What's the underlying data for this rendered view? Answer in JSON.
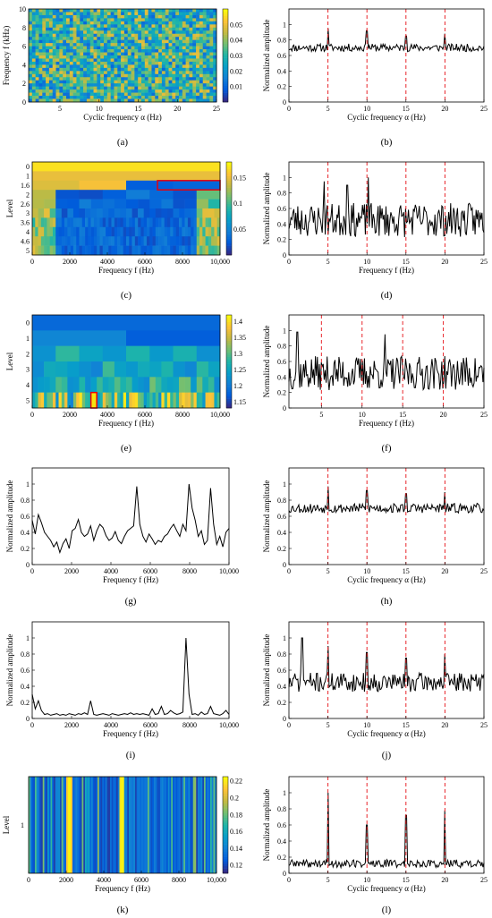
{
  "chart_data": [
    {
      "id": "a",
      "type": "heatmap",
      "panel_label": "(a)",
      "xlabel": "Cyclic frequency α (Hz)",
      "ylabel": "Frequency f (kHz)",
      "xlim": [
        1,
        25
      ],
      "ylim": [
        0,
        10
      ],
      "xticks": [
        5,
        10,
        15,
        20,
        25
      ],
      "yticks": [
        0,
        2,
        4,
        6,
        8,
        10
      ],
      "colorbar": {
        "min": 0,
        "max": 0.06,
        "ticks": [
          "0.01",
          "0.02",
          "0.03",
          "0.04",
          "0.05"
        ]
      },
      "description_values": {
        "rows": 30,
        "cols": 55,
        "mean": 0.03,
        "spread": 0.02
      }
    },
    {
      "id": "b",
      "type": "line",
      "panel_label": "(b)",
      "xlabel": "Cyclic frequency α (Hz)",
      "ylabel": "Normalized amplitude",
      "xlim": [
        0,
        25
      ],
      "ylim": [
        0,
        1.2
      ],
      "xticks": [
        0,
        5,
        10,
        15,
        20,
        25
      ],
      "yticks": [
        0,
        0.2,
        0.4,
        0.6,
        0.8,
        1
      ],
      "markers": [
        5,
        10,
        15,
        20
      ],
      "series": [
        {
          "baseline": 0.7,
          "noise": 0.05,
          "points": 200,
          "seed": 11,
          "peaks": [
            {
              "x": 5,
              "y": 0.95
            },
            {
              "x": 10,
              "y": 0.92
            },
            {
              "x": 15,
              "y": 0.85
            },
            {
              "x": 20,
              "y": 0.88
            }
          ]
        }
      ]
    },
    {
      "id": "c",
      "type": "heatmap",
      "panel_label": "(c)",
      "xlabel": "Frequency f (Hz)",
      "ylabel": "Level",
      "xlim": [
        0,
        10000
      ],
      "xticks": [
        0,
        2000,
        4000,
        6000,
        8000,
        10000
      ],
      "xticklabels": [
        "0",
        "2000",
        "4000",
        "6000",
        "8000",
        "10,000"
      ],
      "yticklabels": [
        "0",
        "1",
        "1.6",
        "2",
        "2.6",
        "3",
        "3.6",
        "4",
        "4.6",
        "5"
      ],
      "colorbar": {
        "min": 0.0,
        "max": 0.18,
        "ticks": [
          "0.05",
          "0.1",
          "0.15"
        ]
      },
      "highlight": {
        "level": "1.6",
        "x0": 6670,
        "x1": 10000
      }
    },
    {
      "id": "d",
      "type": "line",
      "panel_label": "(d)",
      "xlabel": "Frequency f (Hz)",
      "ylabel": "Normalized amplitude",
      "xlim": [
        0,
        25
      ],
      "ylim": [
        0,
        1.2
      ],
      "xticks": [
        0,
        5,
        10,
        15,
        20,
        25
      ],
      "yticks": [
        0,
        0.2,
        0.4,
        0.6,
        0.8,
        1
      ],
      "markers": [
        5,
        10,
        15,
        20
      ],
      "series": [
        {
          "baseline": 0.45,
          "noise": 0.22,
          "points": 200,
          "seed": 23,
          "peaks": [
            {
              "x": 4.5,
              "y": 0.95
            },
            {
              "x": 10.2,
              "y": 1.0
            },
            {
              "x": 7.5,
              "y": 0.9
            }
          ]
        }
      ]
    },
    {
      "id": "e",
      "type": "heatmap",
      "panel_label": "(e)",
      "xlabel": "Frequency f (Hz)",
      "ylabel": "Level",
      "xlim": [
        0,
        10000
      ],
      "xticks": [
        0,
        2000,
        4000,
        6000,
        8000,
        10000
      ],
      "xticklabels": [
        "0",
        "2000",
        "4000",
        "6000",
        "8000",
        "10,000"
      ],
      "yticklabels": [
        "0",
        "1",
        "2",
        "3",
        "4",
        "5"
      ],
      "colorbar": {
        "min": 1.13,
        "max": 1.42,
        "ticks": [
          "1.15",
          "1.2",
          "1.25",
          "1.3",
          "1.35",
          "1.4"
        ]
      },
      "highlight": {
        "level": "5",
        "x0": 3125,
        "x1": 3437
      }
    },
    {
      "id": "f",
      "type": "line",
      "panel_label": "(f)",
      "xlabel": "Frequency f (Hz)",
      "ylabel": "Normalized amplitude",
      "xlim": [
        1,
        25
      ],
      "ylim": [
        0,
        1.2
      ],
      "xticks": [
        5,
        10,
        15,
        20,
        25
      ],
      "yticks": [
        0,
        0.2,
        0.4,
        0.6,
        0.8,
        1
      ],
      "markers": [
        5,
        10,
        15,
        20
      ],
      "series": [
        {
          "baseline": 0.45,
          "noise": 0.22,
          "points": 200,
          "seed": 37,
          "peaks": [
            {
              "x": 2,
              "y": 0.98
            },
            {
              "x": 12.8,
              "y": 0.95
            }
          ]
        }
      ]
    },
    {
      "id": "g",
      "type": "line",
      "panel_label": "(g)",
      "xlabel": "Frequency f (Hz)",
      "ylabel": "Normalized amplitude",
      "xlim": [
        0,
        10000
      ],
      "ylim": [
        0,
        1.2
      ],
      "xticks": [
        0,
        2000,
        4000,
        6000,
        8000,
        10000
      ],
      "xticklabels": [
        "0",
        "2000",
        "4000",
        "6000",
        "8000",
        "10,000"
      ],
      "yticks": [
        0,
        0.2,
        0.4,
        0.6,
        0.8,
        1
      ],
      "markers": [],
      "series": [
        {
          "x": [
            0,
            156,
            312,
            469,
            625,
            781,
            937,
            1094,
            1250,
            1406,
            1562,
            1719,
            1875,
            2031,
            2187,
            2344,
            2500,
            2656,
            2812,
            2969,
            3125,
            3281,
            3437,
            3594,
            3750,
            3906,
            4062,
            4219,
            4375,
            4531,
            4687,
            4844,
            5000,
            5156,
            5312,
            5469,
            5625,
            5781,
            5937,
            6094,
            6250,
            6406,
            6562,
            6719,
            6875,
            7031,
            7187,
            7344,
            7500,
            7656,
            7812,
            7969,
            8125,
            8281,
            8437,
            8594,
            8750,
            8906,
            9062,
            9219,
            9375,
            9531,
            9687,
            9844,
            10000
          ],
          "y": [
            0.55,
            0.38,
            0.62,
            0.52,
            0.4,
            0.35,
            0.3,
            0.22,
            0.28,
            0.15,
            0.26,
            0.32,
            0.2,
            0.42,
            0.45,
            0.56,
            0.4,
            0.35,
            0.38,
            0.48,
            0.3,
            0.42,
            0.5,
            0.46,
            0.36,
            0.3,
            0.33,
            0.41,
            0.3,
            0.26,
            0.35,
            0.42,
            0.45,
            0.48,
            0.97,
            0.5,
            0.35,
            0.28,
            0.38,
            0.32,
            0.25,
            0.3,
            0.28,
            0.35,
            0.38,
            0.45,
            0.5,
            0.42,
            0.35,
            0.5,
            0.42,
            1.0,
            0.7,
            0.55,
            0.35,
            0.42,
            0.25,
            0.3,
            0.95,
            0.5,
            0.25,
            0.35,
            0.22,
            0.4,
            0.45
          ]
        }
      ]
    },
    {
      "id": "h",
      "type": "line",
      "panel_label": "(h)",
      "xlabel": "Cyclic frequency α (Hz)",
      "ylabel": "Normalized amplitude",
      "xlim": [
        0,
        25
      ],
      "ylim": [
        0,
        1.2
      ],
      "xticks": [
        0,
        5,
        10,
        15,
        20,
        25
      ],
      "yticks": [
        0,
        0.2,
        0.4,
        0.6,
        0.8,
        1
      ],
      "markers": [
        5,
        10,
        15,
        20
      ],
      "series": [
        {
          "baseline": 0.7,
          "noise": 0.06,
          "points": 200,
          "seed": 53,
          "peaks": [
            {
              "x": 5,
              "y": 0.97
            },
            {
              "x": 10,
              "y": 0.92
            },
            {
              "x": 15,
              "y": 0.88
            },
            {
              "x": 20,
              "y": 0.9
            }
          ]
        }
      ]
    },
    {
      "id": "i",
      "type": "line",
      "panel_label": "(i)",
      "xlabel": "Frequency f (Hz)",
      "ylabel": "Normalized amplitude",
      "xlim": [
        0,
        10000
      ],
      "ylim": [
        0,
        1.2
      ],
      "xticks": [
        0,
        2000,
        4000,
        6000,
        8000,
        10000
      ],
      "xticklabels": [
        "0",
        "2000",
        "4000",
        "6000",
        "8000",
        "10,000"
      ],
      "yticks": [
        0,
        0.2,
        0.4,
        0.6,
        0.8,
        1
      ],
      "markers": [],
      "series": [
        {
          "x": [
            0,
            156,
            312,
            469,
            625,
            781,
            937,
            1094,
            1250,
            1406,
            1562,
            1719,
            1875,
            2031,
            2187,
            2344,
            2500,
            2656,
            2812,
            2969,
            3125,
            3281,
            3437,
            3594,
            3750,
            3906,
            4062,
            4219,
            4375,
            4531,
            4687,
            4844,
            5000,
            5156,
            5312,
            5469,
            5625,
            5781,
            5937,
            6094,
            6250,
            6406,
            6562,
            6719,
            6875,
            7031,
            7187,
            7344,
            7500,
            7656,
            7812,
            7969,
            8125,
            8281,
            8437,
            8594,
            8750,
            8906,
            9062,
            9219,
            9375,
            9531,
            9687,
            9844,
            10000
          ],
          "y": [
            0.3,
            0.12,
            0.22,
            0.1,
            0.05,
            0.06,
            0.04,
            0.05,
            0.06,
            0.04,
            0.05,
            0.04,
            0.06,
            0.05,
            0.04,
            0.06,
            0.05,
            0.07,
            0.05,
            0.22,
            0.05,
            0.04,
            0.05,
            0.06,
            0.05,
            0.04,
            0.06,
            0.05,
            0.04,
            0.05,
            0.06,
            0.05,
            0.07,
            0.05,
            0.06,
            0.05,
            0.06,
            0.05,
            0.04,
            0.12,
            0.05,
            0.06,
            0.15,
            0.05,
            0.06,
            0.1,
            0.07,
            0.05,
            0.06,
            0.08,
            1.0,
            0.3,
            0.05,
            0.06,
            0.04,
            0.08,
            0.05,
            0.06,
            0.15,
            0.06,
            0.05,
            0.04,
            0.06,
            0.1,
            0.05
          ]
        }
      ]
    },
    {
      "id": "j",
      "type": "line",
      "panel_label": "(j)",
      "xlabel": "Cyclic frequency α (Hz)",
      "ylabel": "Normalized amplitude",
      "xlim": [
        0,
        25
      ],
      "ylim": [
        0,
        1.2
      ],
      "xticks": [
        0,
        5,
        10,
        15,
        20,
        25
      ],
      "yticks": [
        0,
        0.2,
        0.4,
        0.6,
        0.8,
        1
      ],
      "markers": [
        5,
        10,
        15,
        20
      ],
      "series": [
        {
          "baseline": 0.45,
          "noise": 0.12,
          "points": 200,
          "seed": 71,
          "peaks": [
            {
              "x": 1.7,
              "y": 1.0
            },
            {
              "x": 5,
              "y": 0.9
            },
            {
              "x": 10,
              "y": 0.82
            },
            {
              "x": 15,
              "y": 0.75
            },
            {
              "x": 20,
              "y": 0.8
            }
          ]
        }
      ]
    },
    {
      "id": "k",
      "type": "heatmap",
      "panel_label": "(k)",
      "xlabel": "Frequency f (Hz)",
      "ylabel": "Level",
      "xlim": [
        0,
        10000
      ],
      "xticks": [
        0,
        2000,
        4000,
        6000,
        8000,
        10000
      ],
      "xticklabels": [
        "0",
        "2000",
        "4000",
        "6000",
        "8000",
        "10,000"
      ],
      "yticklabels": [
        "1"
      ],
      "colorbar": {
        "min": 0.11,
        "max": 0.225,
        "ticks": [
          "0.12",
          "0.14",
          "0.16",
          "0.18",
          "0.2",
          "0.22"
        ]
      },
      "highlight_bands": [
        2000,
        2300,
        4850,
        5100
      ]
    },
    {
      "id": "l",
      "type": "line",
      "panel_label": "(l)",
      "xlabel": "Cyclic frequency α (Hz)",
      "ylabel": "Normalized amplitude",
      "xlim": [
        0,
        25
      ],
      "ylim": [
        0,
        1.2
      ],
      "xticks": [
        0,
        5,
        10,
        15,
        20,
        25
      ],
      "yticks": [
        0,
        0.2,
        0.4,
        0.6,
        0.8,
        1
      ],
      "markers": [
        5,
        10,
        15,
        20
      ],
      "series": [
        {
          "baseline": 0.12,
          "noise": 0.05,
          "points": 200,
          "seed": 89,
          "peaks": [
            {
              "x": 5,
              "y": 1.0
            },
            {
              "x": 10,
              "y": 0.6
            },
            {
              "x": 15,
              "y": 0.72
            },
            {
              "x": 20,
              "y": 0.78
            }
          ]
        }
      ]
    }
  ],
  "colors": {
    "line": "#000000",
    "marker": "#e8252a",
    "highlight": "#e8000b"
  }
}
